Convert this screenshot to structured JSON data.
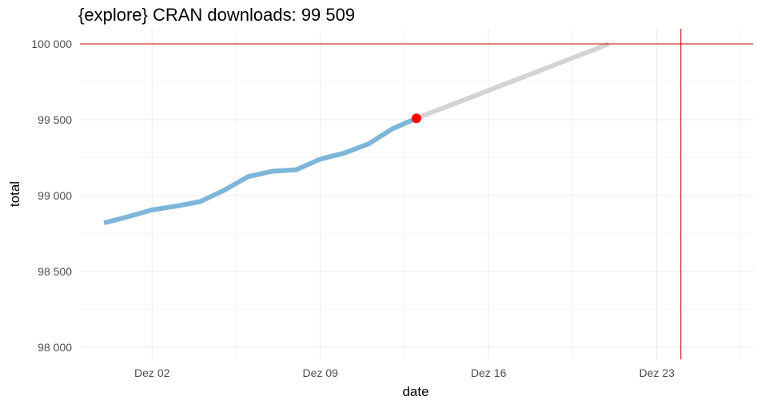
{
  "chart_data": {
    "type": "line",
    "title": "{explore} CRAN downloads: 99 509",
    "xlabel": "date",
    "ylabel": "total",
    "xlim": [
      "2023-11-29",
      "2023-12-27"
    ],
    "ylim": [
      97920,
      100100
    ],
    "x_ticks": [
      "2023-12-02",
      "2023-12-09",
      "2023-12-16",
      "2023-12-23"
    ],
    "x_tick_labels": [
      "Dez 02",
      "Dez 09",
      "Dez 16",
      "Dez 23"
    ],
    "y_ticks": [
      98000,
      98500,
      99000,
      99500,
      100000
    ],
    "y_tick_labels": [
      "98 000",
      "98 500",
      "99 000",
      "99 500",
      "100 000"
    ],
    "grid": true,
    "series": [
      {
        "color": "#7eb6d9",
        "points": [
          {
            "x": "2023-11-30",
            "y": 98820
          },
          {
            "x": "2023-12-01",
            "y": 98860
          },
          {
            "x": "2023-12-02",
            "y": 98905
          },
          {
            "x": "2023-12-03",
            "y": 98930
          },
          {
            "x": "2023-12-04",
            "y": 98960
          },
          {
            "x": "2023-12-05",
            "y": 99035
          },
          {
            "x": "2023-12-06",
            "y": 99125
          },
          {
            "x": "2023-12-07",
            "y": 99160
          },
          {
            "x": "2023-12-08",
            "y": 99170
          },
          {
            "x": "2023-12-09",
            "y": 99240
          },
          {
            "x": "2023-12-10",
            "y": 99280
          },
          {
            "x": "2023-12-11",
            "y": 99340
          },
          {
            "x": "2023-12-12",
            "y": 99440
          },
          {
            "x": "2023-12-13",
            "y": 99509
          }
        ]
      },
      {
        "color": "#d3d3d3",
        "points": [
          {
            "x": "2023-12-13",
            "y": 99509
          },
          {
            "x": "2023-12-21",
            "y": 100000
          }
        ]
      }
    ],
    "highlight_point": {
      "x": "2023-12-13",
      "y": 99509,
      "color": "#ff0000"
    },
    "reference_lines": {
      "horizontal": {
        "y": 100000,
        "color": "#cc0000"
      },
      "vertical": {
        "x": "2023-12-24",
        "color": "#cc0000"
      }
    }
  }
}
